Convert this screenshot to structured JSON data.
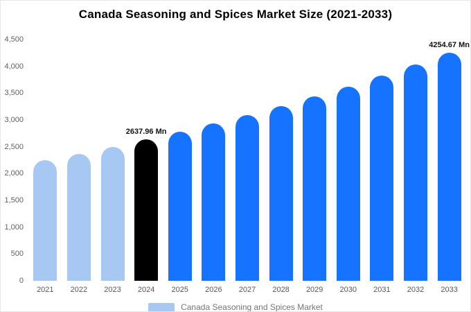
{
  "chart_data": {
    "type": "bar",
    "title": "Canada Seasoning and Spices Market Size (2021-2033)",
    "categories": [
      "2021",
      "2022",
      "2023",
      "2024",
      "2025",
      "2026",
      "2027",
      "2028",
      "2029",
      "2030",
      "2031",
      "2032",
      "2033"
    ],
    "values": [
      2250,
      2372,
      2501,
      2637.96,
      2782,
      2933,
      3093,
      3262,
      3440,
      3627,
      3825,
      4034,
      4254.67
    ],
    "ylim": [
      0,
      4500
    ],
    "ytick_step": 500,
    "ytick_labels": [
      "0",
      "500",
      "1,000",
      "1,500",
      "2,000",
      "2,500",
      "3,000",
      "3,500",
      "4,000",
      "4,500"
    ],
    "grid": false,
    "bar_colors": [
      "#a6c8f2",
      "#a6c8f2",
      "#a6c8f2",
      "#000000",
      "#1673ff",
      "#1673ff",
      "#1673ff",
      "#1673ff",
      "#1673ff",
      "#1673ff",
      "#1673ff",
      "#1673ff",
      "#1673ff"
    ],
    "annotations": [
      {
        "index": 3,
        "text": "2637.96 Mn"
      },
      {
        "index": 12,
        "text": "4254.67 Mn"
      }
    ],
    "legend": [
      {
        "label": "Canada Seasoning and Spices Market",
        "color": "#a6c8f2"
      }
    ],
    "colors": {
      "series_light": "#a6c8f2",
      "series_highlight": "#000000",
      "series_main": "#1673ff",
      "axis_text": "#5f5f5f"
    }
  }
}
